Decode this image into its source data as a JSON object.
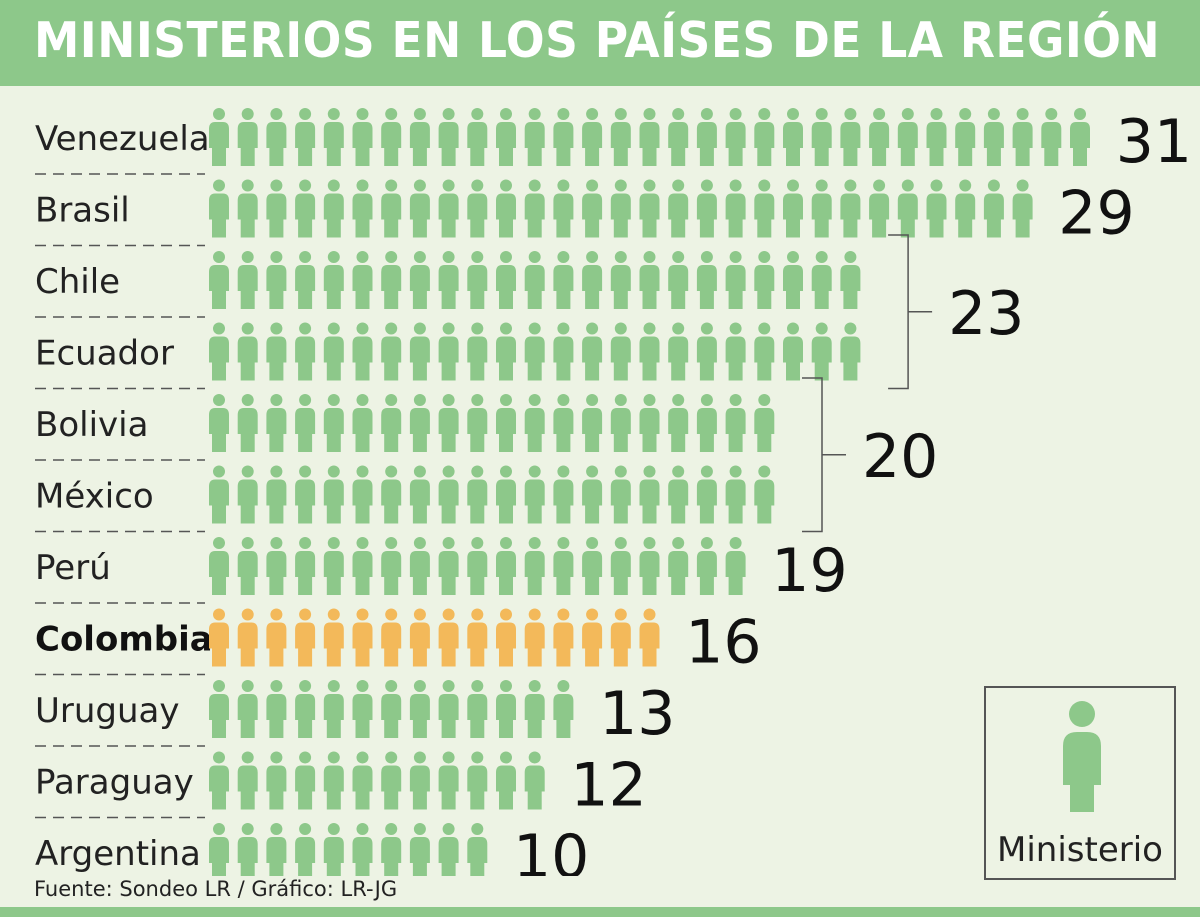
{
  "title": "MINISTERIOS EN LOS PAÍSES DE LA REGIÓN",
  "source": "Fuente: Sondeo LR / Gráfico: LR-JG",
  "legend": {
    "label": "Ministerio",
    "icon": "person-icon"
  },
  "colors": {
    "header": "#8dc88a",
    "background": "#edf3e4",
    "icon": "#8dc88a",
    "highlight": "#f3b95a"
  },
  "chart_data": {
    "type": "bar",
    "title": "MINISTERIOS EN LOS PAÍSES DE LA REGIÓN",
    "categories": [
      "Venezuela",
      "Brasil",
      "Chile",
      "Ecuador",
      "Bolivia",
      "México",
      "Perú",
      "Colombia",
      "Uruguay",
      "Paraguay",
      "Argentina"
    ],
    "values": [
      31,
      29,
      23,
      23,
      20,
      20,
      19,
      16,
      13,
      12,
      10
    ],
    "highlight_category": "Colombia",
    "value_labels": [
      {
        "text": "31",
        "categories": [
          "Venezuela"
        ]
      },
      {
        "text": "29",
        "categories": [
          "Brasil"
        ]
      },
      {
        "text": "23",
        "categories": [
          "Chile",
          "Ecuador"
        ]
      },
      {
        "text": "20",
        "categories": [
          "Bolivia",
          "México"
        ]
      },
      {
        "text": "19",
        "categories": [
          "Perú"
        ]
      },
      {
        "text": "16",
        "categories": [
          "Colombia"
        ]
      },
      {
        "text": "13",
        "categories": [
          "Uruguay"
        ]
      },
      {
        "text": "12",
        "categories": [
          "Paraguay"
        ]
      },
      {
        "text": "10",
        "categories": [
          "Argentina"
        ]
      }
    ],
    "legend": [
      "Ministerio"
    ],
    "legend_position": "bottom-right"
  }
}
